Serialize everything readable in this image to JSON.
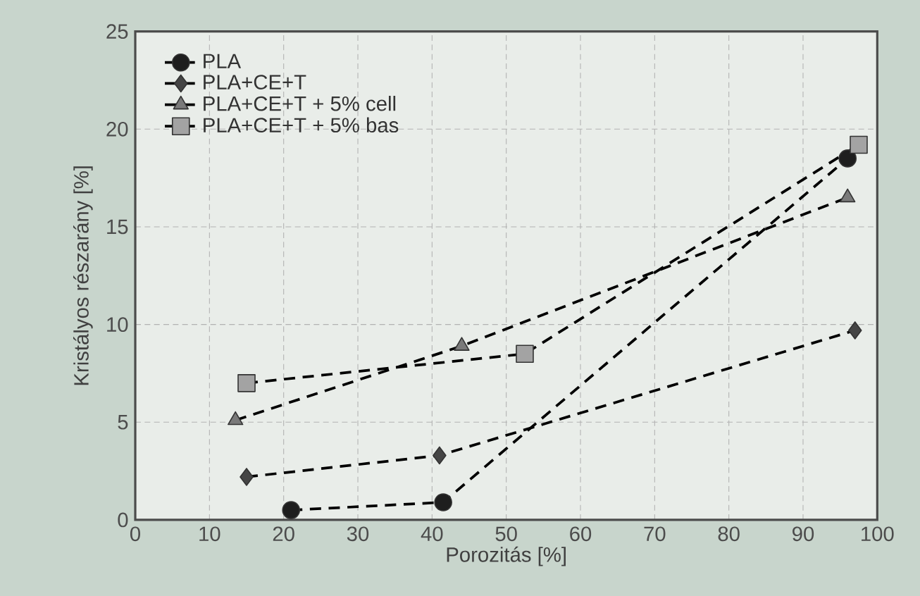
{
  "chart_data": {
    "type": "line",
    "xlabel": "Porozitás [%]",
    "ylabel": "Kristályos részarány [%]",
    "xlim": [
      0,
      100
    ],
    "xticks": [
      0,
      10,
      20,
      30,
      40,
      50,
      60,
      70,
      80,
      90,
      100
    ],
    "ylim": [
      0,
      25
    ],
    "yticks": [
      0,
      5,
      10,
      15,
      20,
      25
    ],
    "grid": true,
    "legend": "top left",
    "line_style": "dashed",
    "series": [
      {
        "name": "PLA",
        "color": "#1e1e1e",
        "marker": "circle",
        "x": [
          21,
          41.5,
          96
        ],
        "values": [
          0.5,
          0.9,
          18.5
        ]
      },
      {
        "name": "PLA+CE+T",
        "color": "#454545",
        "marker": "diamond",
        "x": [
          15,
          41,
          97
        ],
        "values": [
          2.2,
          3.3,
          9.7
        ]
      },
      {
        "name": "PLA+CE+T + 5% cell",
        "color": "#7a7a7a",
        "marker": "triangle",
        "x": [
          13.5,
          44,
          96
        ],
        "values": [
          5.1,
          8.9,
          16.5
        ]
      },
      {
        "name": "PLA+CE+T + 5% bas",
        "color": "#a3a3a3",
        "marker": "square",
        "x": [
          15,
          52.5,
          97.5
        ],
        "values": [
          7.0,
          8.5,
          19.2
        ]
      }
    ]
  }
}
